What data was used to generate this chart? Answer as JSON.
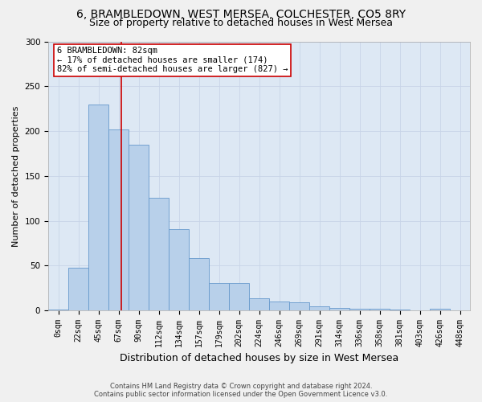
{
  "title": "6, BRAMBLEDOWN, WEST MERSEA, COLCHESTER, CO5 8RY",
  "subtitle": "Size of property relative to detached houses in West Mersea",
  "xlabel": "Distribution of detached houses by size in West Mersea",
  "ylabel": "Number of detached properties",
  "categories": [
    "0sqm",
    "22sqm",
    "45sqm",
    "67sqm",
    "90sqm",
    "112sqm",
    "134sqm",
    "157sqm",
    "179sqm",
    "202sqm",
    "224sqm",
    "246sqm",
    "269sqm",
    "291sqm",
    "314sqm",
    "336sqm",
    "358sqm",
    "381sqm",
    "403sqm",
    "426sqm",
    "448sqm"
  ],
  "values": [
    1,
    48,
    230,
    202,
    185,
    126,
    91,
    58,
    31,
    31,
    14,
    10,
    9,
    5,
    3,
    2,
    2,
    1,
    0,
    2,
    0
  ],
  "bar_color": "#b8d0ea",
  "bar_edge_color": "#6699cc",
  "vline_color": "#cc0000",
  "annotation_box_edge_color": "#cc0000",
  "annotation_box_face_color": "#ffffff",
  "grid_color": "#c8d4e8",
  "background_color": "#dde8f4",
  "fig_background_color": "#f0f0f0",
  "ylim": [
    0,
    300
  ],
  "yticks": [
    0,
    50,
    100,
    150,
    200,
    250,
    300
  ],
  "vline_pos": 3.65,
  "annotation_title": "6 BRAMBLEDOWN: 82sqm",
  "annotation_line1": "← 17% of detached houses are smaller (174)",
  "annotation_line2": "82% of semi-detached houses are larger (827) →",
  "footer_line1": "Contains HM Land Registry data © Crown copyright and database right 2024.",
  "footer_line2": "Contains public sector information licensed under the Open Government Licence v3.0.",
  "title_fontsize": 10,
  "subtitle_fontsize": 9,
  "tick_fontsize": 7,
  "ylabel_fontsize": 8,
  "xlabel_fontsize": 9,
  "annotation_fontsize": 7.5,
  "footer_fontsize": 6
}
